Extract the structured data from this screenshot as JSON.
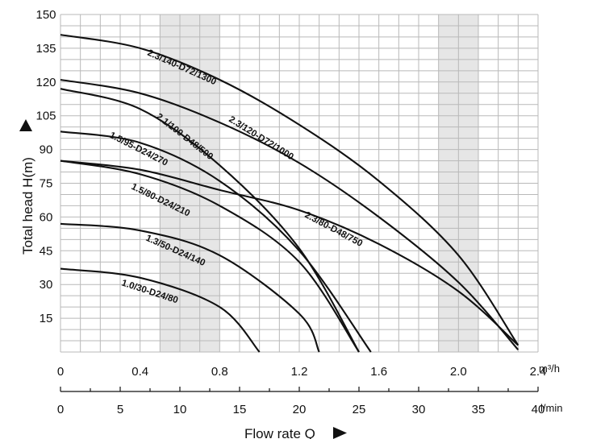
{
  "chart_data": {
    "type": "line",
    "ylabel": "Total head H(m)",
    "xlabel": "Flow rate Q",
    "x_unit_primary": "m³/h",
    "x_unit_secondary": "l/min",
    "y_ticks": [
      "150",
      "135",
      "120",
      "105",
      "90",
      "75",
      "60",
      "45",
      "30",
      "15"
    ],
    "x_ticks_primary": [
      "0",
      "0.4",
      "0.8",
      "1.2",
      "1.6",
      "2.0",
      "2.4"
    ],
    "x_ticks_secondary": [
      "0",
      "5",
      "10",
      "15",
      "20",
      "25",
      "30",
      "35",
      "40"
    ],
    "xlim": [
      0,
      2.4
    ],
    "ylim": [
      0,
      150
    ],
    "grid": true,
    "shaded_bands_m3h": [
      [
        0.5,
        0.8
      ],
      [
        1.9,
        2.1
      ]
    ],
    "series": [
      {
        "name": "2.3/140-D72/1300",
        "x": [
          0,
          0.4,
          0.8,
          1.2,
          1.6,
          2.0,
          2.3
        ],
        "y": [
          141,
          135,
          121,
          101,
          76,
          43,
          3
        ]
      },
      {
        "name": "2.3/120-D72/1000",
        "x": [
          0,
          0.4,
          0.8,
          1.2,
          1.6,
          2.0,
          2.3
        ],
        "y": [
          121,
          115,
          102,
          84,
          60,
          31,
          1
        ]
      },
      {
        "name": "2.1/100-D48/500",
        "x": [
          0,
          0.4,
          0.8,
          1.2,
          1.5
        ],
        "y": [
          117,
          108,
          83,
          46,
          0
        ]
      },
      {
        "name": "1.5/95-D24/270",
        "x": [
          0,
          0.4,
          0.8,
          1.2,
          1.56
        ],
        "y": [
          98,
          93,
          76,
          45,
          0
        ]
      },
      {
        "name": "1.5/80-D24/210",
        "x": [
          0,
          0.4,
          0.8,
          1.2,
          1.5
        ],
        "y": [
          85,
          79,
          65,
          40,
          0
        ]
      },
      {
        "name": "2.3/80-D48/750",
        "x": [
          0,
          0.4,
          0.8,
          1.2,
          1.6,
          2.0,
          2.3
        ],
        "y": [
          85,
          81,
          72,
          63,
          48,
          27,
          3
        ]
      },
      {
        "name": "1.3/50-D24/140",
        "x": [
          0,
          0.4,
          0.8,
          1.2,
          1.3
        ],
        "y": [
          57,
          54,
          43,
          17,
          0
        ]
      },
      {
        "name": "1.0/30-D24/80",
        "x": [
          0,
          0.4,
          0.8,
          1.0
        ],
        "y": [
          37,
          33,
          20,
          0
        ]
      }
    ]
  }
}
